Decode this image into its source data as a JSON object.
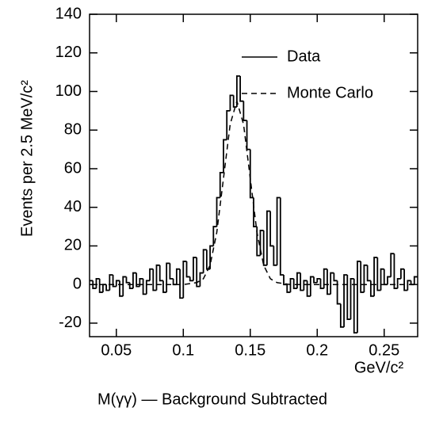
{
  "chart_data": {
    "type": "histogram",
    "bins": [
      0.03,
      0.0325,
      0.035,
      0.0375,
      0.04,
      0.0425,
      0.045,
      0.0475,
      0.05,
      0.0525,
      0.055,
      0.0575,
      0.06,
      0.0625,
      0.065,
      0.0675,
      0.07,
      0.0725,
      0.075,
      0.0775,
      0.08,
      0.0825,
      0.085,
      0.0875,
      0.09,
      0.0925,
      0.095,
      0.0975,
      0.1,
      0.1025,
      0.105,
      0.1075,
      0.11,
      0.1125,
      0.115,
      0.1175,
      0.12,
      0.1225,
      0.125,
      0.1275,
      0.13,
      0.1325,
      0.135,
      0.1375,
      0.14,
      0.1425,
      0.145,
      0.1475,
      0.15,
      0.1525,
      0.155,
      0.1575,
      0.16,
      0.1625,
      0.165,
      0.1675,
      0.17,
      0.1725,
      0.175,
      0.1775,
      0.18,
      0.1825,
      0.185,
      0.1875,
      0.19,
      0.1925,
      0.195,
      0.1975,
      0.2,
      0.2025,
      0.205,
      0.2075,
      0.21,
      0.2125,
      0.215,
      0.2175,
      0.22,
      0.2225,
      0.225,
      0.2275,
      0.23,
      0.2325,
      0.235,
      0.2375,
      0.24,
      0.2425,
      0.245,
      0.2475,
      0.25,
      0.2525,
      0.255,
      0.2575,
      0.26,
      0.2625,
      0.265,
      0.2675,
      0.27,
      0.2725,
      0.275
    ],
    "series": [
      {
        "name": "Data",
        "color": "#000000",
        "dash": false,
        "values": [
          2,
          -2,
          3,
          -4,
          0,
          -3,
          5,
          -1,
          2,
          -6,
          4,
          1,
          -2,
          6,
          -1,
          3,
          -5,
          2,
          8,
          -3,
          10,
          2,
          -4,
          11,
          3,
          0,
          8,
          -7,
          12,
          4,
          2,
          14,
          -1,
          6,
          18,
          8,
          20,
          30,
          45,
          58,
          75,
          90,
          98,
          92,
          108,
          95,
          85,
          70,
          45,
          30,
          15,
          28,
          10,
          38,
          20,
          10,
          45,
          5,
          0,
          -4,
          3,
          -2,
          6,
          -3,
          2,
          -6,
          4,
          1,
          3,
          -2,
          8,
          -5,
          6,
          2,
          -10,
          -22,
          5,
          -18,
          3,
          -25,
          12,
          -4,
          10,
          2,
          -6,
          14,
          -3,
          8,
          0,
          4,
          16,
          -2,
          3,
          8,
          -3,
          2,
          0,
          4
        ]
      },
      {
        "name": "Monte Carlo",
        "color": "#000000",
        "dash": true,
        "x": [
          0.03,
          0.1,
          0.11,
          0.115,
          0.12,
          0.125,
          0.13,
          0.135,
          0.14,
          0.145,
          0.15,
          0.155,
          0.16,
          0.165,
          0.17,
          0.18,
          0.275
        ],
        "values": [
          0,
          0,
          1,
          3,
          10,
          27,
          55,
          83,
          95,
          83,
          55,
          27,
          10,
          3,
          1,
          0,
          0
        ]
      }
    ],
    "xlim": [
      0.03,
      0.275
    ],
    "ylim": [
      -27,
      140
    ],
    "xticks": [
      0.05,
      0.1,
      0.15,
      0.2,
      0.25
    ],
    "yticks": [
      -20,
      0,
      20,
      40,
      60,
      80,
      100,
      120,
      140
    ],
    "ylabel": "Events per 2.5 MeV/c²",
    "xlabel": "GeV/c²",
    "caption": "M(γγ) — Background Subtracted",
    "legend": "upper right"
  }
}
